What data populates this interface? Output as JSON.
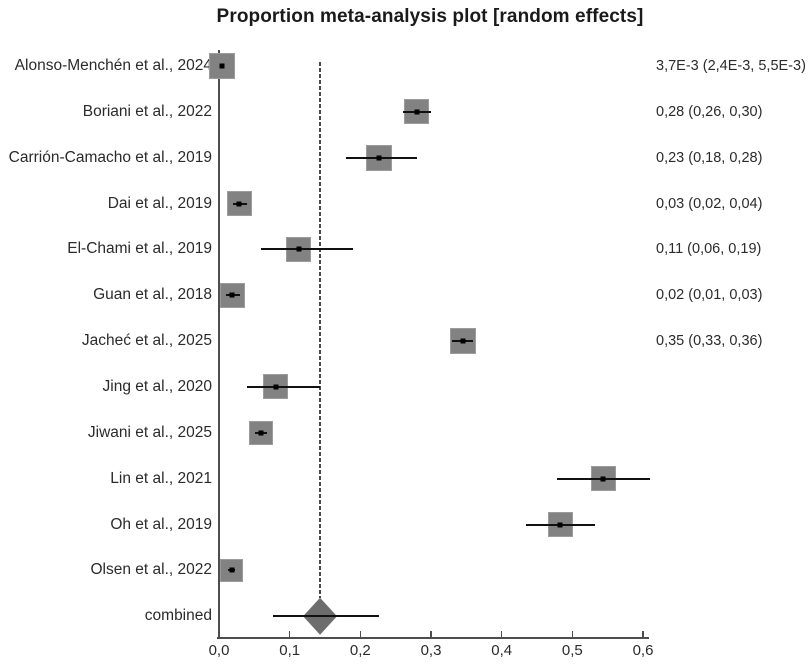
{
  "title": "Proportion meta-analysis plot [random effects]",
  "colors": {
    "square_fill": "#828282",
    "square_border": "#9c9c9c",
    "diamond_fill": "#6d6d6d",
    "ci_line": "#111111",
    "axis": "#4d4d4d",
    "text": "#2b2b2b"
  },
  "chart_data": {
    "type": "scatter",
    "subtype": "forest-plot",
    "title": "Proportion meta-analysis plot [random effects]",
    "xlabel": "",
    "ylabel": "",
    "x_range": [
      0,
      0.6
    ],
    "grid": false,
    "legend": "none",
    "reference_line_value": 0.143,
    "x_ticks": [
      {
        "value": 0.0,
        "label": "0,0"
      },
      {
        "value": 0.1,
        "label": "0,1"
      },
      {
        "value": 0.2,
        "label": "0,2"
      },
      {
        "value": 0.3,
        "label": "0,3"
      },
      {
        "value": 0.4,
        "label": "0,4"
      },
      {
        "value": 0.5,
        "label": "0,5"
      },
      {
        "value": 0.6,
        "label": "0,6"
      }
    ],
    "studies": [
      {
        "label": "Alonso-Menchén et al., 2024",
        "estimate": 0.0037,
        "ci_low": 0.0024,
        "ci_high": 0.0055,
        "value_text": "3,7E-3 (2,4E-3, 5,5E-3)",
        "marker": "square",
        "size": 26
      },
      {
        "label": "Boriani et al., 2022",
        "estimate": 0.28,
        "ci_low": 0.26,
        "ci_high": 0.3,
        "value_text": "0,28 (0,26, 0,30)",
        "marker": "square",
        "size": 25
      },
      {
        "label": "Carrión-Camacho et  al., 2019",
        "estimate": 0.227,
        "ci_low": 0.18,
        "ci_high": 0.28,
        "value_text": "0,23 (0,18, 0,28)",
        "marker": "square",
        "size": 26
      },
      {
        "label": "Dai et al., 2019",
        "estimate": 0.029,
        "ci_low": 0.02,
        "ci_high": 0.04,
        "value_text": "0,03 (0,02, 0,04)",
        "marker": "square",
        "size": 25
      },
      {
        "label": "El-Chami et al., 2019",
        "estimate": 0.113,
        "ci_low": 0.06,
        "ci_high": 0.19,
        "value_text": "0,11 (0,06, 0,19)",
        "marker": "square",
        "size": 25
      },
      {
        "label": "Guan et al., 2018",
        "estimate": 0.019,
        "ci_low": 0.01,
        "ci_high": 0.03,
        "value_text": "0,02 (0,01, 0,03)",
        "marker": "square",
        "size": 25
      },
      {
        "label": "Jacheć et al., 2025",
        "estimate": 0.345,
        "ci_low": 0.33,
        "ci_high": 0.36,
        "value_text": "0,35 (0,33, 0,36)",
        "marker": "square",
        "size": 26
      },
      {
        "label": "Jing et al., 2020",
        "estimate": 0.08,
        "ci_low": 0.039,
        "ci_high": 0.143,
        "value_text": "",
        "marker": "square",
        "size": 25
      },
      {
        "label": "Jiwani et al., 2025",
        "estimate": 0.06,
        "ci_low": 0.051,
        "ci_high": 0.068,
        "value_text": "",
        "marker": "square",
        "size": 24
      },
      {
        "label": "Lin et al., 2021",
        "estimate": 0.544,
        "ci_low": 0.478,
        "ci_high": 0.61,
        "value_text": "",
        "marker": "square",
        "size": 25
      },
      {
        "label": "Oh et al., 2019",
        "estimate": 0.483,
        "ci_low": 0.435,
        "ci_high": 0.532,
        "value_text": "",
        "marker": "square",
        "size": 25
      },
      {
        "label": "Olsen et al., 2022",
        "estimate": 0.018,
        "ci_low": 0.013,
        "ci_high": 0.023,
        "value_text": "",
        "marker": "square",
        "size": 23
      },
      {
        "label": "combined",
        "estimate": 0.143,
        "ci_low": 0.076,
        "ci_high": 0.227,
        "value_text": "",
        "marker": "diamond",
        "size": 34
      }
    ]
  }
}
